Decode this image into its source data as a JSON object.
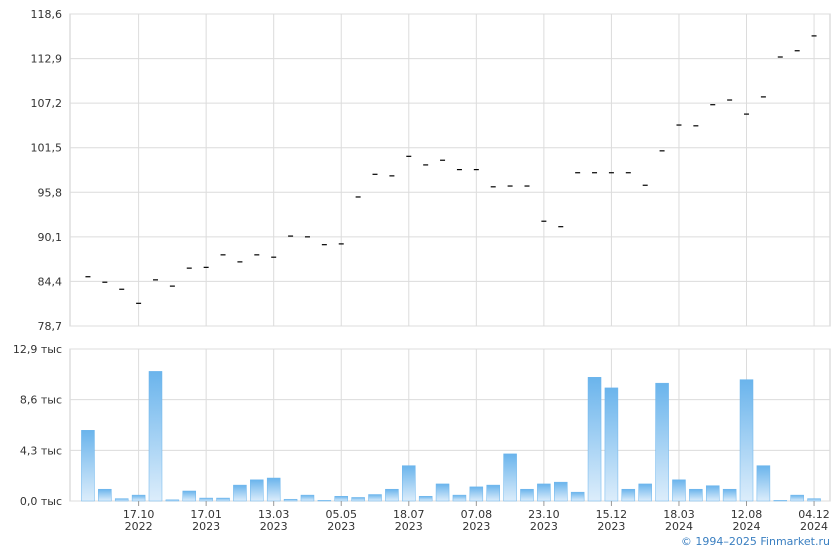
{
  "chart_data": [
    {
      "type": "dash",
      "color": "#000000",
      "values": [
        85.0,
        84.3,
        83.4,
        81.6,
        84.6,
        83.8,
        86.1,
        86.2,
        87.8,
        86.9,
        87.8,
        87.5,
        90.2,
        90.1,
        89.1,
        89.2,
        95.2,
        98.1,
        97.9,
        100.4,
        99.3,
        99.9,
        98.7,
        98.7,
        96.5,
        96.6,
        96.6,
        92.1,
        91.4,
        98.3,
        98.3,
        98.3,
        98.3,
        96.7,
        101.1,
        104.4,
        104.3,
        107.0,
        107.6,
        105.8,
        108.0,
        113.1,
        113.9,
        115.8
      ],
      "ylim": [
        78.7,
        118.6
      ],
      "yticks": [
        {
          "value": 78.7,
          "label": "78,7"
        },
        {
          "value": 84.4,
          "label": "84,4"
        },
        {
          "value": 90.1,
          "label": "90,1"
        },
        {
          "value": 95.8,
          "label": "95,8"
        },
        {
          "value": 101.5,
          "label": "101,5"
        },
        {
          "value": 107.2,
          "label": "107,2"
        },
        {
          "value": 112.9,
          "label": "112,9"
        },
        {
          "value": 118.6,
          "label": "118,6"
        }
      ],
      "grid": true
    },
    {
      "type": "bar",
      "color": "#6ab4ec",
      "categories": [
        null,
        null,
        null,
        "17.10\n2022",
        null,
        null,
        null,
        "17.01\n2023",
        null,
        null,
        null,
        "13.03\n2023",
        null,
        null,
        null,
        "05.05\n2023",
        null,
        null,
        null,
        "18.07\n2023",
        null,
        null,
        null,
        "07.08\n2023",
        null,
        null,
        null,
        "23.10\n2023",
        null,
        null,
        null,
        "15.12\n2023",
        null,
        null,
        null,
        "18.03\n2024",
        null,
        null,
        null,
        "12.08\n2024",
        null,
        null,
        null,
        "04.12\n2024"
      ],
      "values": [
        6.0,
        1.0,
        0.2,
        0.5,
        11.0,
        0.1,
        0.85,
        0.25,
        0.25,
        1.35,
        1.8,
        1.95,
        0.15,
        0.5,
        0.05,
        0.4,
        0.3,
        0.55,
        1.0,
        3.0,
        0.4,
        1.45,
        0.5,
        1.2,
        1.35,
        4.0,
        1.0,
        1.45,
        1.6,
        0.75,
        10.5,
        9.6,
        1.0,
        1.45,
        10.0,
        1.8,
        1.0,
        1.3,
        1.0,
        10.3,
        3.0,
        0.05,
        0.5,
        0.2
      ],
      "ylim": [
        0,
        12.9
      ],
      "yticks": [
        {
          "value": 0,
          "label": "0,0 тыс"
        },
        {
          "value": 4.3,
          "label": "4,3 тыс"
        },
        {
          "value": 8.6,
          "label": "8,6 тыс"
        },
        {
          "value": 12.9,
          "label": "12,9 тыс"
        }
      ],
      "grid": true
    }
  ],
  "footer": "© 1994–2025 Finmarket.ru"
}
